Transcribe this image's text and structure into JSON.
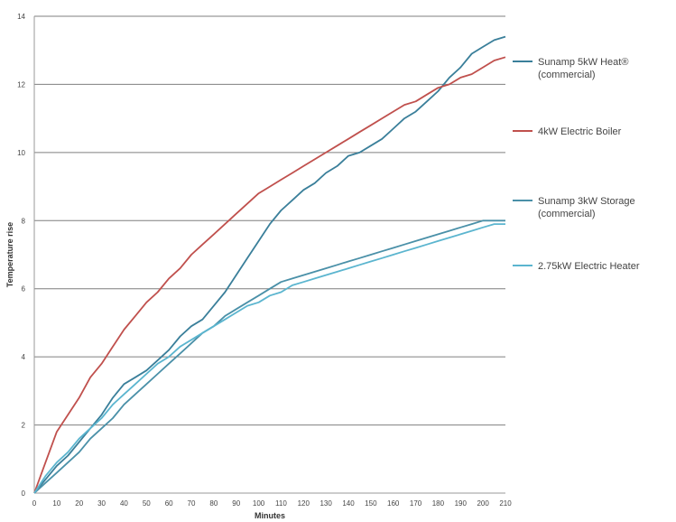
{
  "chart_data": {
    "type": "line",
    "title": "",
    "xlabel": "Minutes",
    "ylabel": "Temperature rise",
    "xlim": [
      0,
      210
    ],
    "ylim": [
      0,
      14
    ],
    "yticks": [
      0,
      2,
      4,
      6,
      8,
      10,
      12,
      14
    ],
    "x": [
      0,
      5,
      10,
      15,
      20,
      25,
      30,
      35,
      40,
      45,
      50,
      55,
      60,
      65,
      70,
      75,
      80,
      85,
      90,
      95,
      100,
      105,
      110,
      115,
      120,
      125,
      130,
      135,
      140,
      145,
      150,
      155,
      160,
      165,
      170,
      175,
      180,
      185,
      190,
      195,
      200,
      205,
      210
    ],
    "grid": "horizontal",
    "legend_position": "right",
    "series": [
      {
        "name": "Sunamp 5kW Heat® (commercial)",
        "color": "#3a7f9a",
        "values": [
          0,
          0.4,
          0.8,
          1.1,
          1.5,
          1.9,
          2.3,
          2.8,
          3.2,
          3.4,
          3.6,
          3.9,
          4.2,
          4.6,
          4.9,
          5.1,
          5.5,
          5.9,
          6.4,
          6.9,
          7.4,
          7.9,
          8.3,
          8.6,
          8.9,
          9.1,
          9.4,
          9.6,
          9.9,
          10.0,
          10.2,
          10.4,
          10.7,
          11.0,
          11.2,
          11.5,
          11.8,
          12.2,
          12.5,
          12.9,
          13.1,
          13.3,
          13.4
        ]
      },
      {
        "name": "4kW Electric Boiler",
        "color": "#c0504d",
        "values": [
          0,
          0.9,
          1.8,
          2.3,
          2.8,
          3.4,
          3.8,
          4.3,
          4.8,
          5.2,
          5.6,
          5.9,
          6.3,
          6.6,
          7.0,
          7.3,
          7.6,
          7.9,
          8.2,
          8.5,
          8.8,
          9.0,
          9.2,
          9.4,
          9.6,
          9.8,
          10.0,
          10.2,
          10.4,
          10.6,
          10.8,
          11.0,
          11.2,
          11.4,
          11.5,
          11.7,
          11.9,
          12.0,
          12.2,
          12.3,
          12.5,
          12.7,
          12.8
        ]
      },
      {
        "name": "Sunamp 3kW Storage (commercial)",
        "color": "#4a90a8",
        "values": [
          0,
          0.3,
          0.6,
          0.9,
          1.2,
          1.6,
          1.9,
          2.2,
          2.6,
          2.9,
          3.2,
          3.5,
          3.8,
          4.1,
          4.4,
          4.7,
          4.9,
          5.2,
          5.4,
          5.6,
          5.8,
          6.0,
          6.2,
          6.3,
          6.4,
          6.5,
          6.6,
          6.7,
          6.8,
          6.9,
          7.0,
          7.1,
          7.2,
          7.3,
          7.4,
          7.5,
          7.6,
          7.7,
          7.8,
          7.9,
          8.0,
          8.0,
          8.0
        ]
      },
      {
        "name": "2.75kW Electric Heater",
        "color": "#5bb5cf",
        "values": [
          0,
          0.5,
          0.9,
          1.2,
          1.6,
          1.9,
          2.2,
          2.6,
          2.9,
          3.2,
          3.5,
          3.8,
          4.0,
          4.3,
          4.5,
          4.7,
          4.9,
          5.1,
          5.3,
          5.5,
          5.6,
          5.8,
          5.9,
          6.1,
          6.2,
          6.3,
          6.4,
          6.5,
          6.6,
          6.7,
          6.8,
          6.9,
          7.0,
          7.1,
          7.2,
          7.3,
          7.4,
          7.5,
          7.6,
          7.7,
          7.8,
          7.9,
          7.9
        ]
      }
    ]
  }
}
